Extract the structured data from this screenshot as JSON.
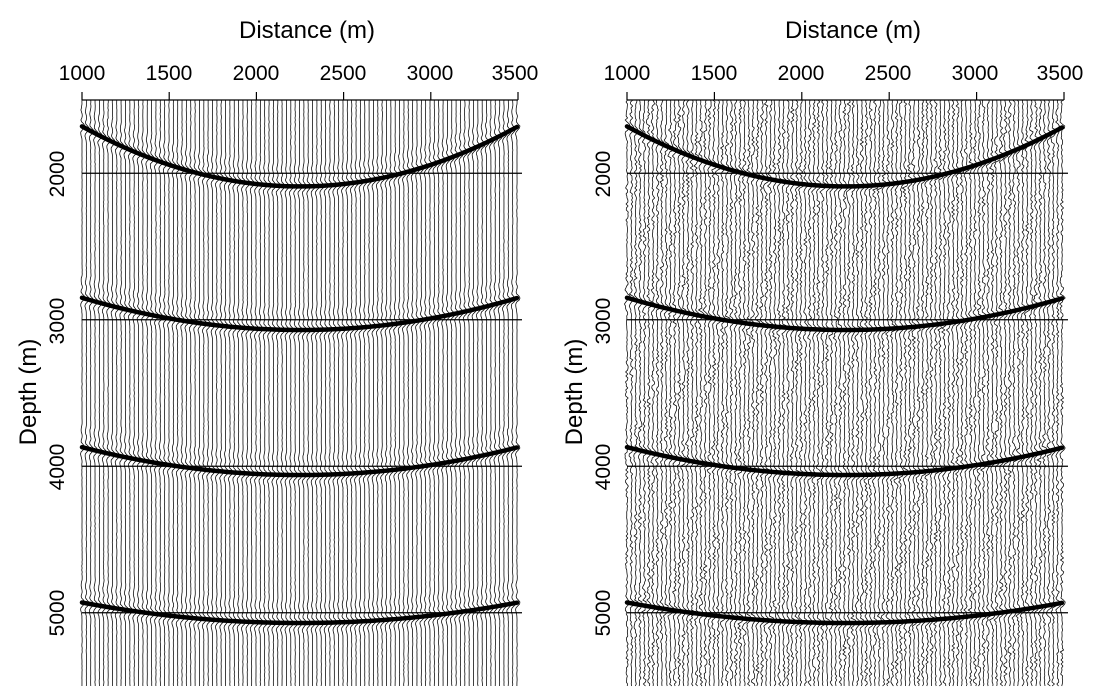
{
  "chart_data": [
    {
      "type": "seismic-wiggle",
      "panel": "left",
      "xlabel": "Distance (m)",
      "ylabel": "Depth (m)",
      "x_ticks": [
        "1000",
        "1500",
        "2000",
        "2500",
        "3000",
        "3500"
      ],
      "y_ticks": [
        "2000",
        "3000",
        "4000",
        "5000"
      ],
      "xlim": [
        1000,
        3500
      ],
      "ylim": [
        1500,
        5500
      ],
      "x_axis_position": "top",
      "trace_color": "#000000",
      "noise_level": 0.08,
      "reflectors": [
        {
          "edge_depth": 1680,
          "apex_depth": 2090,
          "apex_x": 2250
        },
        {
          "edge_depth": 2850,
          "apex_depth": 3070,
          "apex_x": 2250
        },
        {
          "edge_depth": 3870,
          "apex_depth": 4060,
          "apex_x": 2250
        },
        {
          "edge_depth": 4930,
          "apex_depth": 5070,
          "apex_x": 2250
        }
      ]
    },
    {
      "type": "seismic-wiggle",
      "panel": "right",
      "xlabel": "Distance (m)",
      "ylabel": "Depth (m)",
      "x_ticks": [
        "1000",
        "1500",
        "2000",
        "2500",
        "3000",
        "3500"
      ],
      "y_ticks": [
        "2000",
        "3000",
        "4000",
        "5000"
      ],
      "xlim": [
        1000,
        3500
      ],
      "ylim": [
        1500,
        5500
      ],
      "x_axis_position": "top",
      "trace_color": "#000000",
      "noise_level": 0.55,
      "reflectors": [
        {
          "edge_depth": 1680,
          "apex_depth": 2090,
          "apex_x": 2250
        },
        {
          "edge_depth": 2850,
          "apex_depth": 3070,
          "apex_x": 2250
        },
        {
          "edge_depth": 3870,
          "apex_depth": 4060,
          "apex_x": 2250
        },
        {
          "edge_depth": 4930,
          "apex_depth": 5070,
          "apex_x": 2250
        }
      ]
    }
  ]
}
